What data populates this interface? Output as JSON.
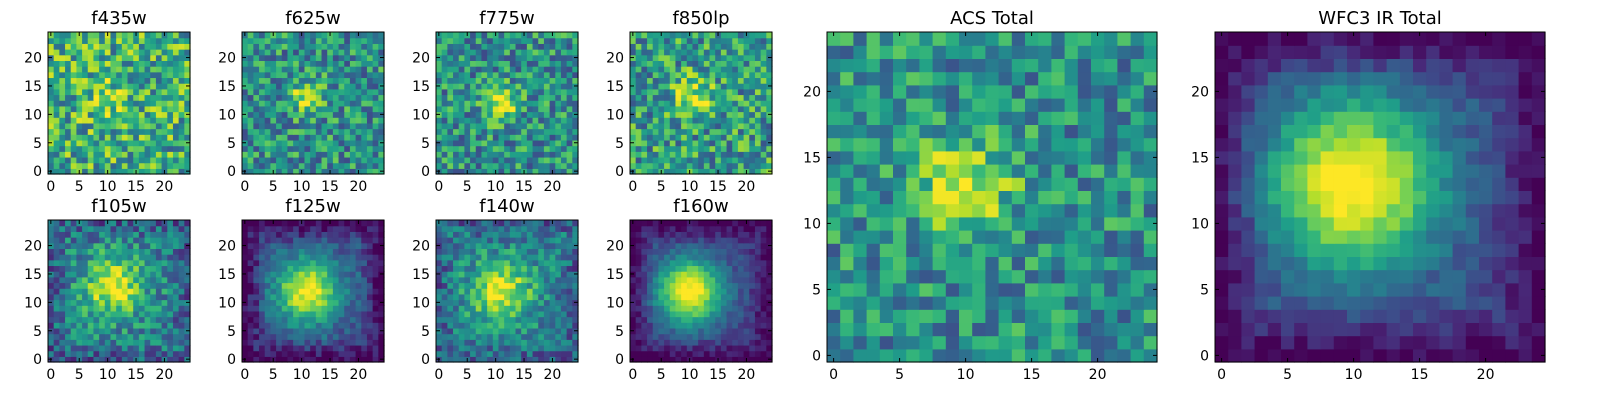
{
  "chart_data": [
    {
      "type": "heatmap",
      "title": "f435w",
      "xticks": [
        "0",
        "5",
        "10",
        "15",
        "20"
      ],
      "yticks": [
        "0",
        "5",
        "10",
        "15",
        "20"
      ],
      "xlim": [
        -0.5,
        24.5
      ],
      "ylim": [
        -0.5,
        24.5
      ],
      "grid_size": 25,
      "colormap": "viridis",
      "center": [
        10,
        13
      ],
      "peak_strength": 0.15,
      "peak_width": 3,
      "noise": 0.32,
      "background": 0.62,
      "edge_darkening": 0,
      "seed": 11
    },
    {
      "type": "heatmap",
      "title": "f625w",
      "xticks": [
        "0",
        "5",
        "10",
        "15",
        "20"
      ],
      "yticks": [
        "0",
        "5",
        "10",
        "15",
        "20"
      ],
      "xlim": [
        -0.5,
        24.5
      ],
      "ylim": [
        -0.5,
        24.5
      ],
      "grid_size": 25,
      "colormap": "viridis",
      "center": [
        11,
        13
      ],
      "peak_strength": 0.45,
      "peak_width": 2,
      "noise": 0.28,
      "background": 0.5,
      "edge_darkening": 0,
      "seed": 23
    },
    {
      "type": "heatmap",
      "title": "f775w",
      "xticks": [
        "0",
        "5",
        "10",
        "15",
        "20"
      ],
      "yticks": [
        "0",
        "5",
        "10",
        "15",
        "20"
      ],
      "xlim": [
        -0.5,
        24.5
      ],
      "ylim": [
        -0.5,
        24.5
      ],
      "grid_size": 25,
      "colormap": "viridis",
      "center": [
        11,
        12
      ],
      "peak_strength": 0.5,
      "peak_width": 2,
      "noise": 0.28,
      "background": 0.5,
      "edge_darkening": 0,
      "seed": 37
    },
    {
      "type": "heatmap",
      "title": "f850lp",
      "xticks": [
        "0",
        "5",
        "10",
        "15",
        "20"
      ],
      "yticks": [
        "0",
        "5",
        "10",
        "15",
        "20"
      ],
      "xlim": [
        -0.5,
        24.5
      ],
      "ylim": [
        -0.5,
        24.5
      ],
      "grid_size": 25,
      "colormap": "viridis",
      "center": [
        11,
        13
      ],
      "peak_strength": 0.35,
      "peak_width": 2.5,
      "noise": 0.3,
      "background": 0.55,
      "edge_darkening": 0,
      "seed": 51
    },
    {
      "type": "heatmap",
      "title": "f105w",
      "xticks": [
        "0",
        "5",
        "10",
        "15",
        "20"
      ],
      "yticks": [
        "0",
        "5",
        "10",
        "15",
        "20"
      ],
      "xlim": [
        -0.5,
        24.5
      ],
      "ylim": [
        -0.5,
        24.5
      ],
      "grid_size": 25,
      "colormap": "viridis",
      "center": [
        11,
        13
      ],
      "peak_strength": 0.55,
      "peak_width": 3.5,
      "noise": 0.22,
      "background": 0.45,
      "edge_darkening": 0.15,
      "seed": 67
    },
    {
      "type": "heatmap",
      "title": "f125w",
      "xticks": [
        "0",
        "5",
        "10",
        "15",
        "20"
      ],
      "yticks": [
        "0",
        "5",
        "10",
        "15",
        "20"
      ],
      "xlim": [
        -0.5,
        24.5
      ],
      "ylim": [
        -0.5,
        24.5
      ],
      "grid_size": 25,
      "colormap": "viridis",
      "center": [
        11,
        12
      ],
      "peak_strength": 0.75,
      "peak_width": 4,
      "noise": 0.12,
      "background": 0.25,
      "edge_darkening": 0.25,
      "seed": 79
    },
    {
      "type": "heatmap",
      "title": "f140w",
      "xticks": [
        "0",
        "5",
        "10",
        "15",
        "20"
      ],
      "yticks": [
        "0",
        "5",
        "10",
        "15",
        "20"
      ],
      "xlim": [
        -0.5,
        24.5
      ],
      "ylim": [
        -0.5,
        24.5
      ],
      "grid_size": 25,
      "colormap": "viridis",
      "center": [
        11,
        12
      ],
      "peak_strength": 0.55,
      "peak_width": 3.5,
      "noise": 0.2,
      "background": 0.45,
      "edge_darkening": 0.15,
      "seed": 83
    },
    {
      "type": "heatmap",
      "title": "f160w",
      "xticks": [
        "0",
        "5",
        "10",
        "15",
        "20"
      ],
      "yticks": [
        "0",
        "5",
        "10",
        "15",
        "20"
      ],
      "xlim": [
        -0.5,
        24.5
      ],
      "ylim": [
        -0.5,
        24.5
      ],
      "grid_size": 25,
      "colormap": "viridis",
      "center": [
        10,
        12
      ],
      "peak_strength": 0.85,
      "peak_width": 4,
      "noise": 0.08,
      "background": 0.2,
      "edge_darkening": 0.2,
      "seed": 97
    },
    {
      "type": "heatmap",
      "title": "ACS Total",
      "xticks": [
        "0",
        "5",
        "10",
        "15",
        "20"
      ],
      "yticks": [
        "0",
        "5",
        "10",
        "15",
        "20"
      ],
      "xlim": [
        -0.5,
        24.5
      ],
      "ylim": [
        -0.5,
        24.5
      ],
      "grid_size": 25,
      "colormap": "viridis",
      "center": [
        10,
        13
      ],
      "peak_strength": 0.45,
      "peak_width": 2.5,
      "noise": 0.25,
      "background": 0.5,
      "edge_darkening": 0,
      "seed": 131
    },
    {
      "type": "heatmap",
      "title": "WFC3 IR Total",
      "xticks": [
        "0",
        "5",
        "10",
        "15",
        "20"
      ],
      "yticks": [
        "0",
        "5",
        "10",
        "15",
        "20"
      ],
      "xlim": [
        -0.5,
        24.5
      ],
      "ylim": [
        -0.5,
        24.5
      ],
      "grid_size": 25,
      "colormap": "viridis",
      "center": [
        10,
        13
      ],
      "peak_strength": 0.85,
      "peak_width": 4.5,
      "noise": 0.08,
      "background": 0.22,
      "edge_darkening": 0.22,
      "seed": 149
    }
  ],
  "colormap_stops": [
    "#440154",
    "#482878",
    "#3e4a89",
    "#31688e",
    "#26828e",
    "#1f9e89",
    "#35b779",
    "#6ece58",
    "#b5de2b",
    "#fde725"
  ]
}
